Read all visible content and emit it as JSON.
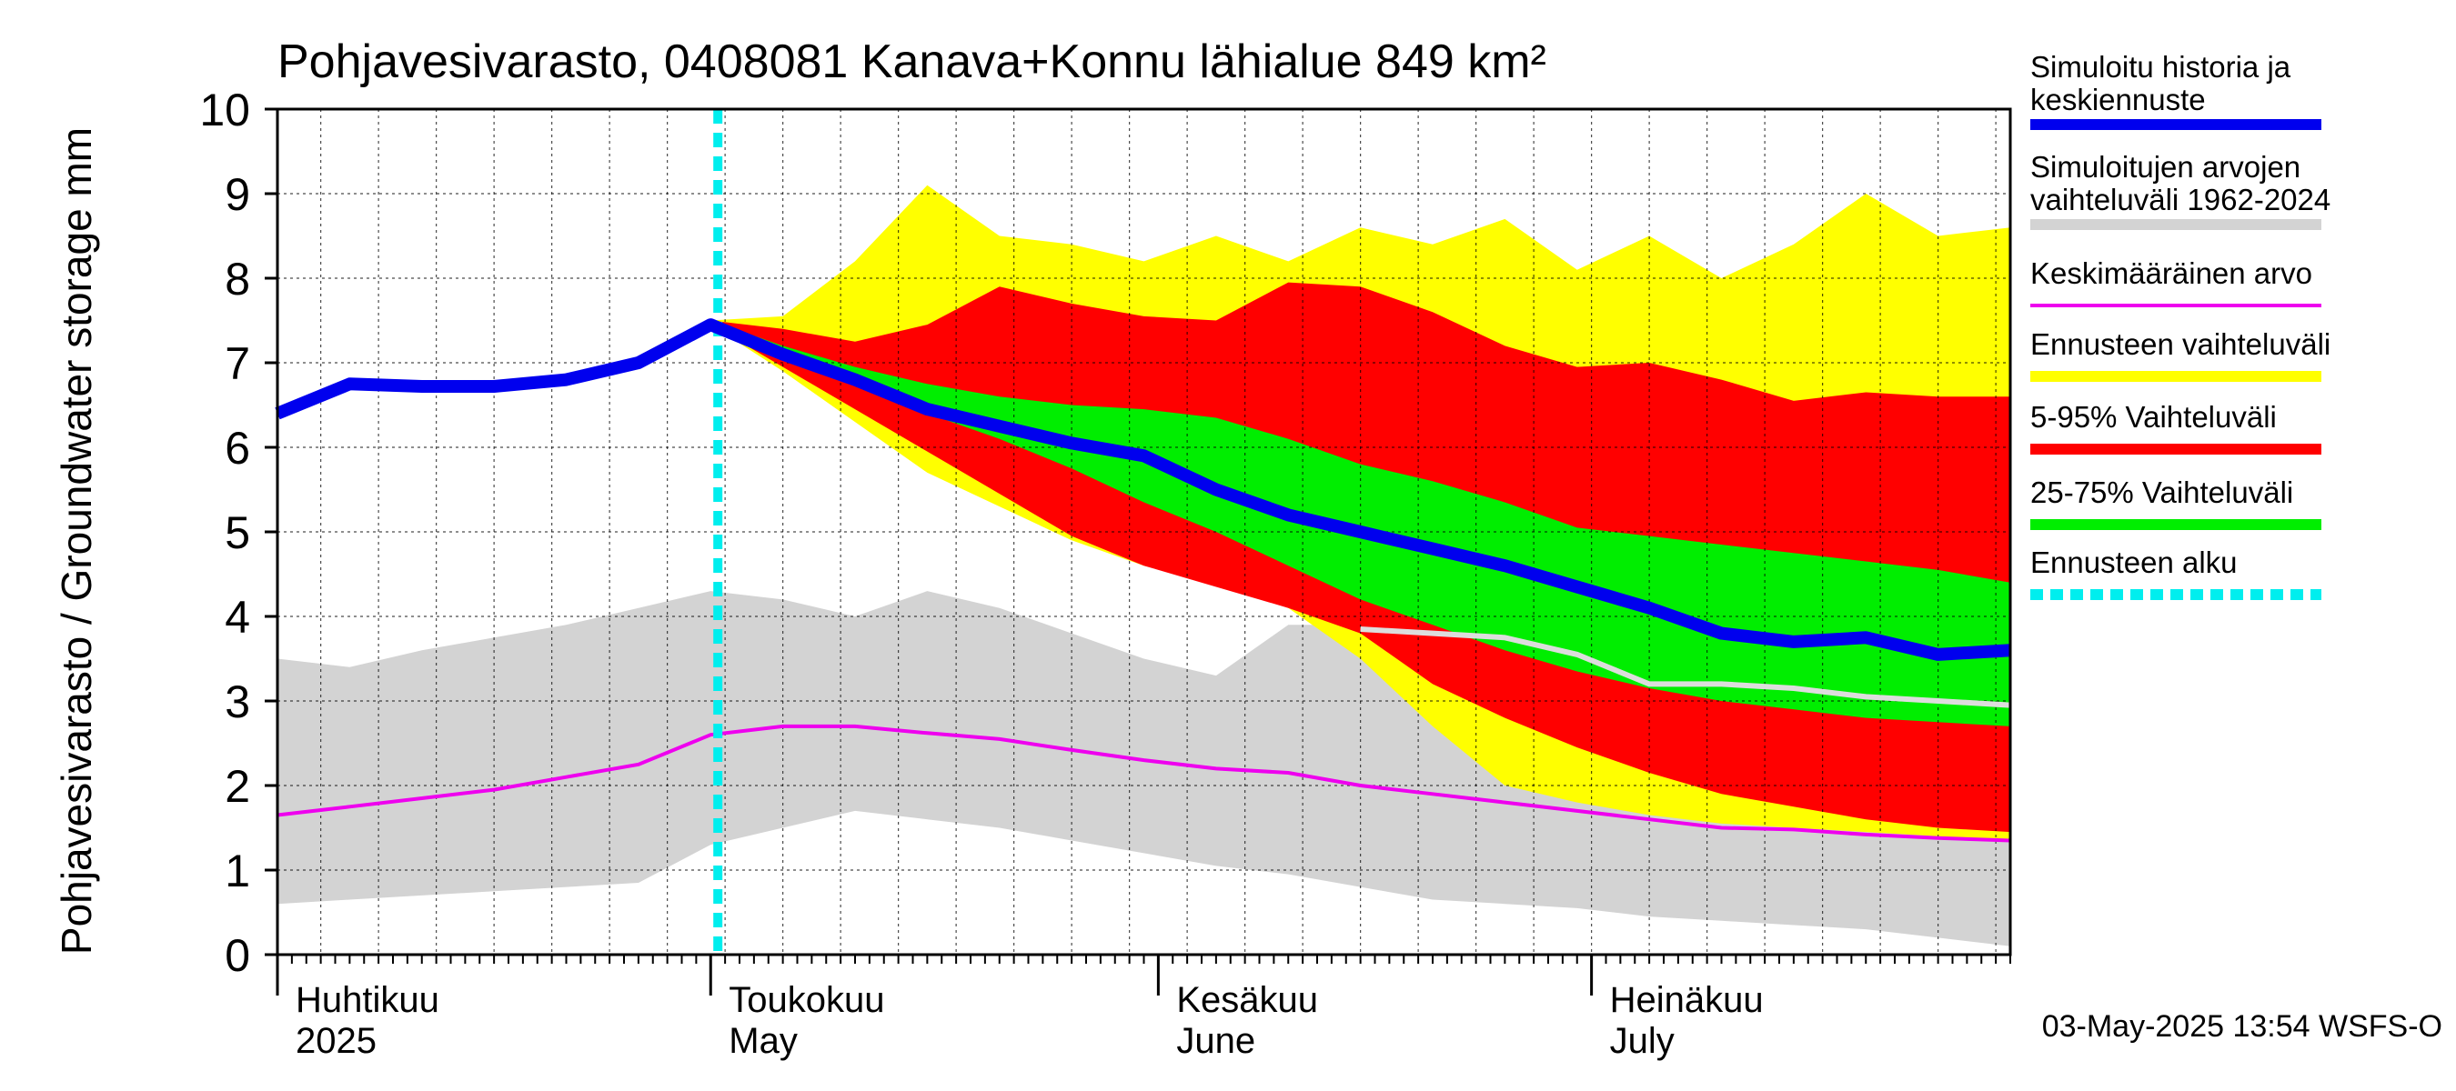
{
  "chart_data": {
    "type": "area",
    "title": "Pohjavesivarasto, 0408081 Kanava+Konnu lähialue 849 km²",
    "ylabel": "Pohjavesivarasto / Groundwater storage   mm",
    "ylim": [
      0,
      10
    ],
    "yticks": [
      0,
      1,
      2,
      3,
      4,
      5,
      6,
      7,
      8,
      9,
      10
    ],
    "xlim": [
      0,
      120
    ],
    "grid": true,
    "legend_position": "right",
    "month_labels": [
      {
        "day": 0,
        "fi": "Huhtikuu",
        "en": "2025"
      },
      {
        "day": 30,
        "fi": "Toukokuu",
        "en": "May"
      },
      {
        "day": 61,
        "fi": "Kesäkuu",
        "en": "June"
      },
      {
        "day": 91,
        "fi": "Heinäkuu",
        "en": "July"
      }
    ],
    "forecast_start_day": 30.5,
    "x": [
      0,
      5,
      10,
      15,
      20,
      25,
      30,
      35,
      40,
      45,
      50,
      55,
      60,
      65,
      70,
      75,
      80,
      85,
      90,
      95,
      100,
      105,
      110,
      115,
      120
    ],
    "series": [
      {
        "name": "Simuloitujen arvojen vaihteluväli 1962-2024",
        "color": "#d3d3d3",
        "lower": [
          0.6,
          0.65,
          0.7,
          0.75,
          0.8,
          0.85,
          1.3,
          1.5,
          1.7,
          1.6,
          1.5,
          1.35,
          1.2,
          1.05,
          0.95,
          0.8,
          0.65,
          0.6,
          0.55,
          0.45,
          0.4,
          0.35,
          0.3,
          0.2,
          0.1
        ],
        "upper": [
          3.5,
          3.4,
          3.6,
          3.75,
          3.9,
          4.1,
          4.3,
          4.2,
          4.0,
          4.3,
          4.1,
          3.8,
          3.5,
          3.3,
          3.9,
          3.9,
          3.85,
          3.75,
          3.6,
          3.5,
          3.4,
          3.3,
          3.2,
          3.1,
          3.0
        ]
      },
      {
        "name": "Ennusteen vaihteluväli",
        "color": "#ffff00",
        "lower": [
          null,
          null,
          null,
          null,
          null,
          null,
          7.45,
          6.9,
          6.3,
          5.7,
          5.3,
          4.9,
          4.6,
          4.4,
          4.1,
          3.5,
          2.7,
          2.0,
          1.8,
          1.65,
          1.55,
          1.5,
          1.45,
          1.4,
          1.35
        ],
        "upper": [
          null,
          null,
          null,
          null,
          null,
          null,
          7.5,
          7.55,
          8.2,
          9.1,
          8.5,
          8.4,
          8.2,
          8.5,
          8.2,
          8.6,
          8.4,
          8.7,
          8.1,
          8.5,
          8.0,
          8.4,
          9.0,
          8.5,
          8.6
        ]
      },
      {
        "name": "5-95% Vaihteluväli",
        "color": "#ff0000",
        "lower": [
          null,
          null,
          null,
          null,
          null,
          null,
          7.45,
          6.95,
          6.45,
          5.95,
          5.45,
          4.95,
          4.6,
          4.35,
          4.1,
          3.8,
          3.2,
          2.8,
          2.45,
          2.15,
          1.9,
          1.75,
          1.6,
          1.5,
          1.45
        ],
        "upper": [
          null,
          null,
          null,
          null,
          null,
          null,
          7.5,
          7.4,
          7.25,
          7.45,
          7.9,
          7.7,
          7.55,
          7.5,
          7.95,
          7.9,
          7.6,
          7.2,
          6.95,
          7.0,
          6.8,
          6.55,
          6.65,
          6.6,
          6.6
        ]
      },
      {
        "name": "25-75% Vaihteluväli",
        "color": "#00ee00",
        "lower": [
          null,
          null,
          null,
          null,
          null,
          null,
          7.45,
          7.1,
          6.8,
          6.4,
          6.1,
          5.75,
          5.35,
          5.0,
          4.6,
          4.2,
          3.9,
          3.6,
          3.35,
          3.15,
          3.0,
          2.9,
          2.8,
          2.75,
          2.7
        ],
        "upper": [
          null,
          null,
          null,
          null,
          null,
          null,
          7.5,
          7.2,
          6.95,
          6.75,
          6.6,
          6.5,
          6.45,
          6.35,
          6.1,
          5.8,
          5.6,
          5.35,
          5.05,
          4.95,
          4.85,
          4.75,
          4.65,
          4.55,
          4.4
        ]
      },
      {
        "name": "Simuloitu historia ja keskiennuste",
        "color": "#0000ee",
        "values": [
          6.4,
          6.75,
          6.72,
          6.72,
          6.8,
          7.0,
          7.45,
          7.1,
          6.8,
          6.45,
          6.25,
          6.05,
          5.9,
          5.5,
          5.2,
          5.0,
          4.8,
          4.6,
          4.35,
          4.1,
          3.8,
          3.7,
          3.75,
          3.55,
          3.6
        ]
      },
      {
        "name": "Keskimääräinen arvo",
        "color": "#ee00ee",
        "values": [
          1.65,
          1.75,
          1.85,
          1.95,
          2.1,
          2.25,
          2.6,
          2.7,
          2.7,
          2.62,
          2.55,
          2.42,
          2.3,
          2.2,
          2.15,
          2.0,
          1.9,
          1.8,
          1.7,
          1.6,
          1.5,
          1.48,
          1.42,
          1.38,
          1.35
        ]
      },
      {
        "name": "median (grey)",
        "color": "#dddddd",
        "values": [
          null,
          null,
          null,
          null,
          null,
          null,
          null,
          null,
          null,
          null,
          null,
          null,
          null,
          null,
          null,
          3.85,
          3.8,
          3.75,
          3.55,
          3.2,
          3.2,
          3.15,
          3.05,
          3.0,
          2.95
        ]
      }
    ],
    "legend": [
      {
        "label": "Simuloitu historia ja keskiennuste",
        "color": "#0000ee",
        "style": "thick"
      },
      {
        "label": "Simuloitujen arvojen vaihteluväli 1962-2024",
        "color": "#d3d3d3",
        "style": "thick"
      },
      {
        "label": "Keskimääräinen arvo",
        "color": "#ee00ee",
        "style": "thin"
      },
      {
        "label": "Ennusteen vaihteluväli",
        "color": "#ffff00",
        "style": "thick"
      },
      {
        "label": "5-95% Vaihteluväli",
        "color": "#ff0000",
        "style": "thick"
      },
      {
        "label": "25-75% Vaihteluväli",
        "color": "#00ee00",
        "style": "thick"
      },
      {
        "label": "Ennusteen alku",
        "color": "#00eeee",
        "style": "dashed"
      }
    ]
  },
  "footer": "03-May-2025 13:54 WSFS-O"
}
